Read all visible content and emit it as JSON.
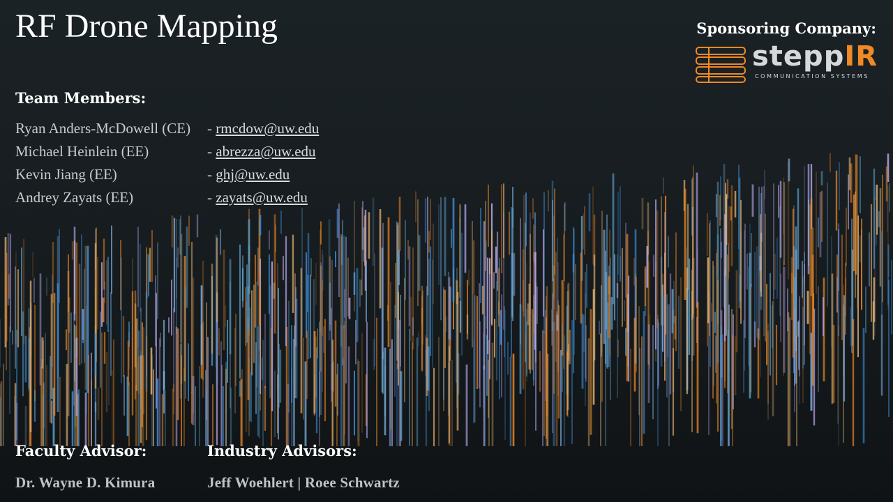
{
  "title": "RF Drone Mapping",
  "sponsor": {
    "label": "Sponsoring Company:",
    "logo_word_a": "stepp",
    "logo_word_b": "IR",
    "logo_tagline": "COMMUNICATION SYSTEMS"
  },
  "team": {
    "label": "Team Members:",
    "members": [
      {
        "name": "Ryan Anders-McDowell (CE)",
        "email": "- rmcdow@uw.edu",
        "email_text": "rmcdow@uw.edu"
      },
      {
        "name": "Michael Heinlein (EE)",
        "email": "- abrezza@uw.edu",
        "email_text": "abrezza@uw.edu"
      },
      {
        "name": "Kevin Jiang (EE)",
        "email": "- ghj@uw.edu",
        "email_text": "ghj@uw.edu"
      },
      {
        "name": "Andrey Zayats (EE)",
        "email": "- zayats@uw.edu",
        "email_text": "zayats@uw.edu"
      }
    ]
  },
  "faculty": {
    "label": "Faculty Advisor:",
    "name": "Dr. Wayne D. Kimura"
  },
  "industry": {
    "label": "Industry Advisors:",
    "names": "Jeff Woehlert | Roee Schwartz"
  },
  "colors": {
    "accent_orange": "#f08a24",
    "accent_blue": "#3f8ed8",
    "accent_lavender": "#b9a9ee"
  }
}
